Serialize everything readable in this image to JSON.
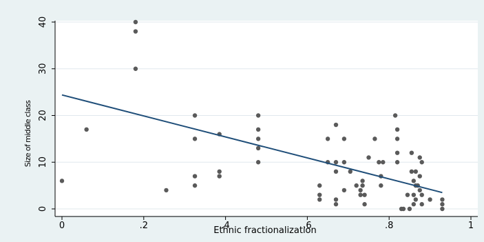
{
  "chart_data": {
    "type": "scatter",
    "title": "",
    "xlabel": "Ethnic fractionalization",
    "ylabel": "Size of middle class",
    "xlim": [
      0,
      1
    ],
    "ylim": [
      0,
      40
    ],
    "xticks": [
      {
        "value": 0,
        "label": "0"
      },
      {
        "value": 0.2,
        "label": ".2"
      },
      {
        "value": 0.4,
        "label": ".4"
      },
      {
        "value": 0.6,
        "label": ".6"
      },
      {
        "value": 0.8,
        "label": ".8"
      },
      {
        "value": 1,
        "label": "1"
      }
    ],
    "yticks": [
      {
        "value": 0,
        "label": "0"
      },
      {
        "value": 10,
        "label": "10"
      },
      {
        "value": 20,
        "label": "20"
      },
      {
        "value": 30,
        "label": "30"
      },
      {
        "value": 40,
        "label": "40"
      }
    ],
    "grid": "horizontal",
    "legend": "none",
    "colors": {
      "background": "#eaf2f3",
      "plot_background": "#ffffff",
      "grid": "#e0e8ee",
      "points": "#5a5a5a",
      "fit_line": "#1f4e79"
    },
    "series": [
      {
        "kind": "points",
        "x": [
          0.0,
          0.06,
          0.18,
          0.18,
          0.18,
          0.255,
          0.325,
          0.325,
          0.325,
          0.325,
          0.385,
          0.385,
          0.385,
          0.48,
          0.48,
          0.48,
          0.48,
          0.48,
          0.63,
          0.63,
          0.63,
          0.65,
          0.65,
          0.67,
          0.67,
          0.67,
          0.67,
          0.67,
          0.69,
          0.69,
          0.69,
          0.705,
          0.72,
          0.73,
          0.73,
          0.735,
          0.735,
          0.74,
          0.74,
          0.75,
          0.765,
          0.775,
          0.78,
          0.78,
          0.785,
          0.815,
          0.82,
          0.82,
          0.82,
          0.82,
          0.83,
          0.835,
          0.845,
          0.85,
          0.855,
          0.855,
          0.86,
          0.86,
          0.86,
          0.865,
          0.865,
          0.865,
          0.87,
          0.875,
          0.875,
          0.875,
          0.88,
          0.88,
          0.88,
          0.9,
          0.93,
          0.93,
          0.93
        ],
        "y": [
          6,
          17,
          40,
          38,
          30,
          4,
          20,
          15,
          7,
          5,
          16,
          8,
          7,
          20,
          17,
          15,
          13,
          10,
          5,
          3,
          2,
          15,
          10,
          18,
          10,
          8,
          2,
          1,
          15,
          10,
          4,
          8,
          5,
          4,
          3,
          6,
          5,
          3,
          1,
          11,
          15,
          10,
          7,
          5,
          10,
          20,
          17,
          15,
          12,
          10,
          0,
          0,
          3,
          0,
          12,
          8,
          6,
          3,
          1,
          8,
          5,
          2,
          5,
          11,
          7,
          4,
          10,
          3,
          1,
          2,
          2,
          1,
          0
        ]
      },
      {
        "kind": "fitted_line",
        "x": [
          0,
          0.93
        ],
        "y": [
          24.4,
          3.5
        ]
      }
    ]
  }
}
